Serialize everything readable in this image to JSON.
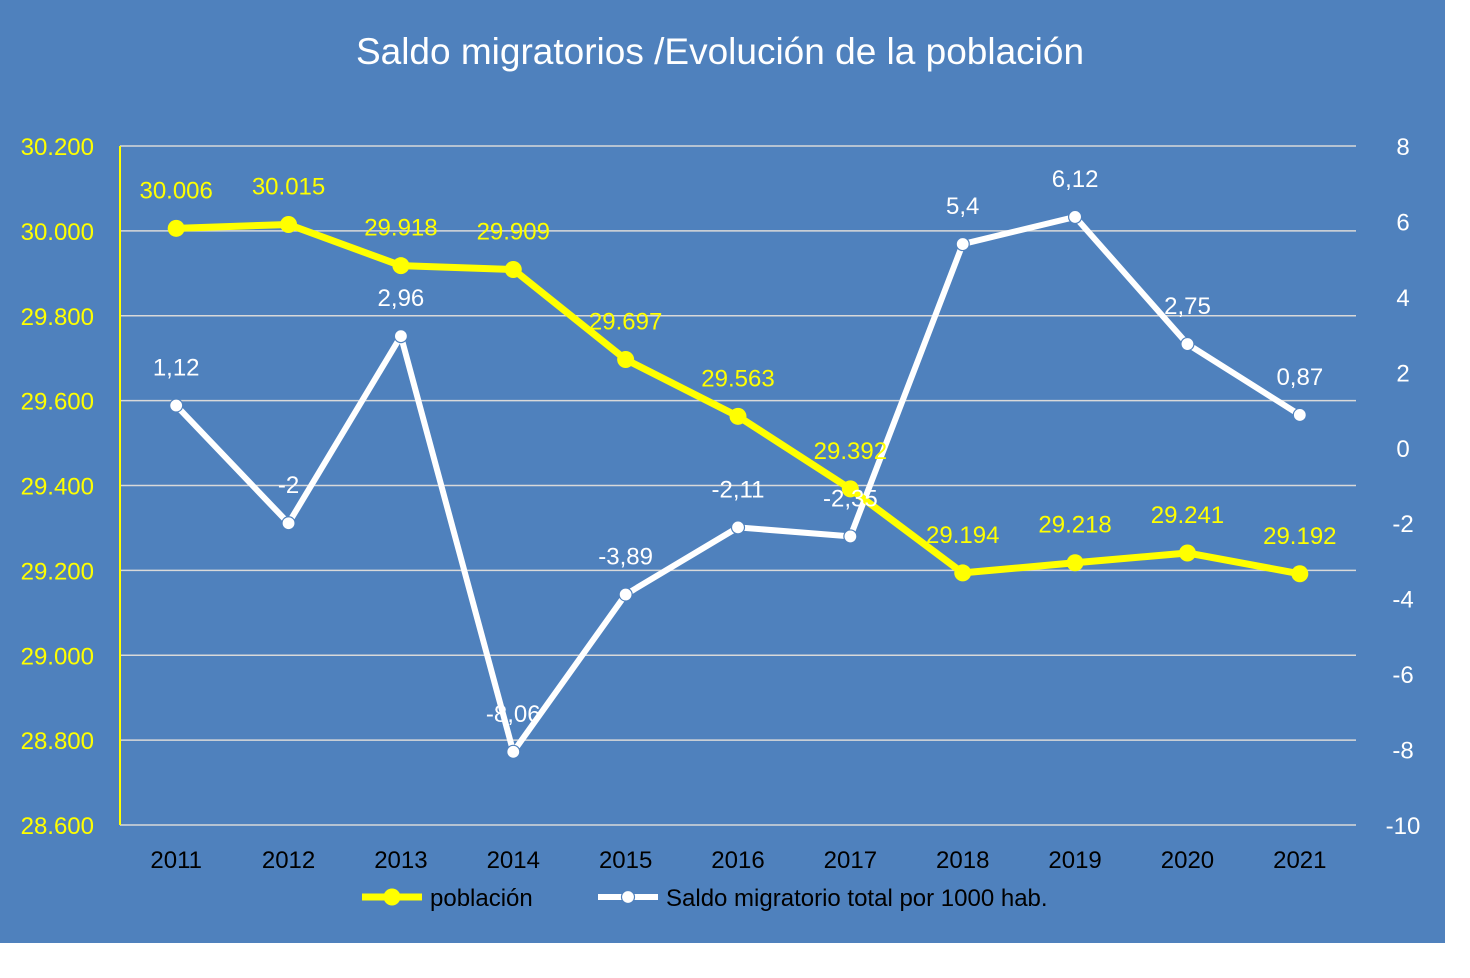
{
  "chart_data": {
    "type": "line",
    "title": "Saldo migratorios /Evolución de la población",
    "categories": [
      "2011",
      "2012",
      "2013",
      "2014",
      "2015",
      "2016",
      "2017",
      "2018",
      "2019",
      "2020",
      "2021"
    ],
    "series": [
      {
        "name": "población",
        "axis": "left",
        "color": "#FFFF00",
        "values": [
          30006,
          30015,
          29918,
          29909,
          29697,
          29563,
          29392,
          29194,
          29218,
          29241,
          29192
        ],
        "labels": [
          "30.006",
          "30.015",
          "29.918",
          "29.909",
          "29.697",
          "29.563",
          "29.392",
          "29.194",
          "29.218",
          "29.241",
          "29.192"
        ]
      },
      {
        "name": "Saldo migratorio total por 1000 hab.",
        "axis": "right",
        "color": "#FFFFFF",
        "values": [
          1.12,
          -2,
          2.96,
          -8.06,
          -3.89,
          -2.11,
          -2.35,
          5.4,
          6.12,
          2.75,
          0.87
        ],
        "labels": [
          "1,12",
          "-2",
          "2,96",
          "-8,06",
          "-3,89",
          "-2,11",
          "-2,35",
          "5,4",
          "6,12",
          "2,75",
          "0,87"
        ]
      }
    ],
    "y_left": {
      "ylim": [
        28600,
        30200
      ],
      "ticks": [
        28600,
        28800,
        29000,
        29200,
        29400,
        29600,
        29800,
        30000,
        30200
      ],
      "tick_labels": [
        "28.600",
        "28.800",
        "29.000",
        "29.200",
        "29.400",
        "29.600",
        "29.800",
        "30.000",
        "30.200"
      ],
      "color": "#FFFF00"
    },
    "y_right": {
      "ylim": [
        -10,
        8
      ],
      "tick_labels": [
        "-10",
        "-8",
        "-6",
        "-4",
        "-2",
        "0",
        "2",
        "4",
        "6",
        "8"
      ],
      "color": "#FFFFFF"
    },
    "grid": true,
    "legend": "bottom",
    "background_color": "#4F81BD"
  }
}
